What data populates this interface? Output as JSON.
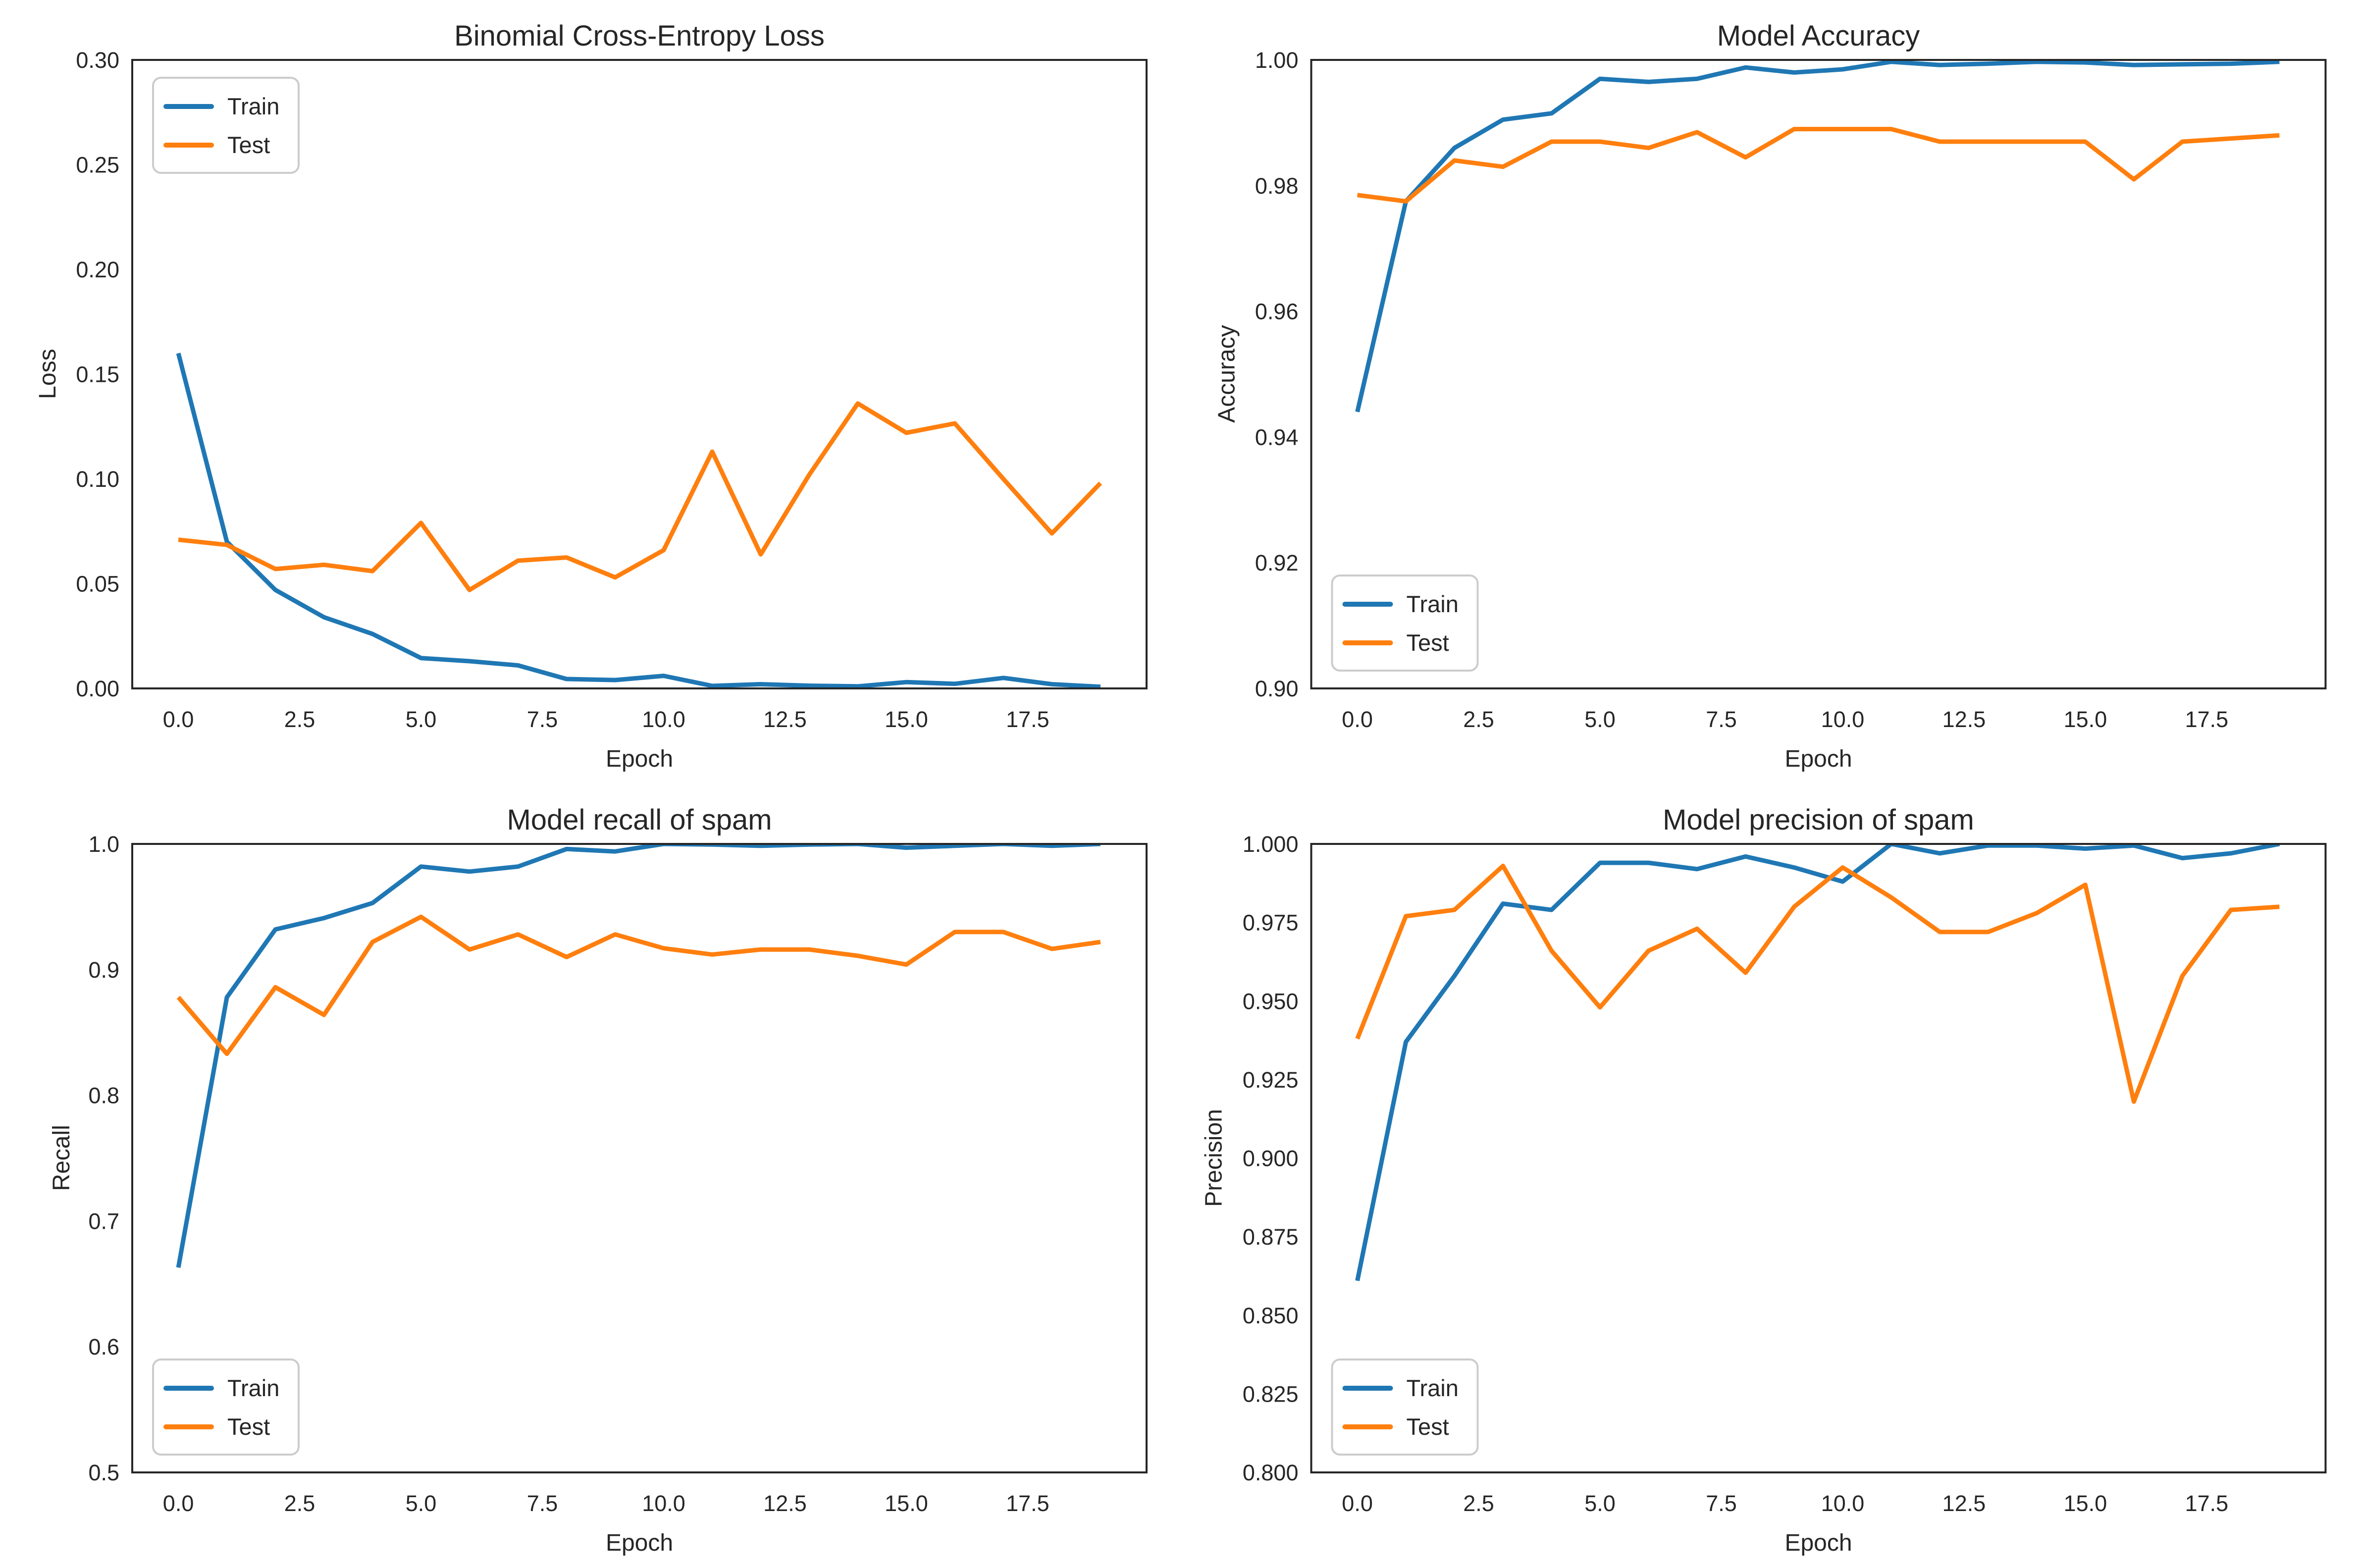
{
  "figure": {
    "background": "#ffffff",
    "spine_color": "#262626",
    "text_color": "#262626",
    "legend_border_color": "#cccccc",
    "legend_fill": "#ffffff"
  },
  "chart_data": [
    {
      "id": "loss",
      "type": "line",
      "title": "Binomial Cross-Entropy Loss",
      "xlabel": "Epoch",
      "ylabel": "Loss",
      "xlim": [
        -0.95,
        19.95
      ],
      "ylim": [
        0.0,
        0.3
      ],
      "xticks": [
        0.0,
        2.5,
        5.0,
        7.5,
        10.0,
        12.5,
        15.0,
        17.5
      ],
      "xtick_labels": [
        "0.0",
        "2.5",
        "5.0",
        "7.5",
        "10.0",
        "12.5",
        "15.0",
        "17.5"
      ],
      "yticks": [
        0.0,
        0.05,
        0.1,
        0.15,
        0.2,
        0.25,
        0.3
      ],
      "ytick_labels": [
        "0.00",
        "0.05",
        "0.10",
        "0.15",
        "0.20",
        "0.25",
        "0.30"
      ],
      "grid": false,
      "legend": {
        "position": "upper-left",
        "entries": [
          "Train",
          "Test"
        ]
      },
      "x": [
        0,
        1,
        2,
        3,
        4,
        5,
        6,
        7,
        8,
        9,
        10,
        11,
        12,
        13,
        14,
        15,
        16,
        17,
        18,
        19
      ],
      "series": [
        {
          "name": "Train",
          "color": "#1f77b4",
          "values": [
            0.16,
            0.07,
            0.047,
            0.034,
            0.026,
            0.0145,
            0.013,
            0.011,
            0.0045,
            0.004,
            0.006,
            0.0012,
            0.002,
            0.0013,
            0.001,
            0.003,
            0.0022,
            0.005,
            0.002,
            0.0008
          ]
        },
        {
          "name": "Test",
          "color": "#ff7f0e",
          "values": [
            0.071,
            0.0685,
            0.057,
            0.059,
            0.056,
            0.079,
            0.047,
            0.061,
            0.0625,
            0.053,
            0.066,
            0.113,
            0.064,
            0.102,
            0.136,
            0.122,
            0.1265,
            0.1,
            0.074,
            0.098
          ]
        }
      ]
    },
    {
      "id": "accuracy",
      "type": "line",
      "title": "Model Accuracy",
      "xlabel": "Epoch",
      "ylabel": "Accuracy",
      "xlim": [
        -0.95,
        19.95
      ],
      "ylim": [
        0.9,
        1.0
      ],
      "xticks": [
        0.0,
        2.5,
        5.0,
        7.5,
        10.0,
        12.5,
        15.0,
        17.5
      ],
      "xtick_labels": [
        "0.0",
        "2.5",
        "5.0",
        "7.5",
        "10.0",
        "12.5",
        "15.0",
        "17.5"
      ],
      "yticks": [
        0.9,
        0.92,
        0.94,
        0.96,
        0.98,
        1.0
      ],
      "ytick_labels": [
        "0.90",
        "0.92",
        "0.94",
        "0.96",
        "0.98",
        "1.00"
      ],
      "grid": false,
      "legend": {
        "position": "lower-left",
        "entries": [
          "Train",
          "Test"
        ]
      },
      "x": [
        0,
        1,
        2,
        3,
        4,
        5,
        6,
        7,
        8,
        9,
        10,
        11,
        12,
        13,
        14,
        15,
        16,
        17,
        18,
        19
      ],
      "series": [
        {
          "name": "Train",
          "color": "#1f77b4",
          "values": [
            0.944,
            0.9775,
            0.986,
            0.9905,
            0.9915,
            0.997,
            0.9965,
            0.997,
            0.9988,
            0.998,
            0.9985,
            0.9997,
            0.9992,
            0.9994,
            0.9997,
            0.9996,
            0.9992,
            0.9993,
            0.9994,
            0.9997
          ]
        },
        {
          "name": "Test",
          "color": "#ff7f0e",
          "values": [
            0.9785,
            0.9775,
            0.984,
            0.983,
            0.987,
            0.987,
            0.986,
            0.9885,
            0.9845,
            0.989,
            0.989,
            0.989,
            0.987,
            0.987,
            0.987,
            0.987,
            0.981,
            0.987,
            0.9875,
            0.988
          ]
        }
      ]
    },
    {
      "id": "recall",
      "type": "line",
      "title": "Model recall of spam",
      "xlabel": "Epoch",
      "ylabel": "Recall",
      "xlim": [
        -0.95,
        19.95
      ],
      "ylim": [
        0.5,
        1.0
      ],
      "xticks": [
        0.0,
        2.5,
        5.0,
        7.5,
        10.0,
        12.5,
        15.0,
        17.5
      ],
      "xtick_labels": [
        "0.0",
        "2.5",
        "5.0",
        "7.5",
        "10.0",
        "12.5",
        "15.0",
        "17.5"
      ],
      "yticks": [
        0.5,
        0.6,
        0.7,
        0.8,
        0.9,
        1.0
      ],
      "ytick_labels": [
        "0.5",
        "0.6",
        "0.7",
        "0.8",
        "0.9",
        "1.0"
      ],
      "grid": false,
      "legend": {
        "position": "lower-left",
        "entries": [
          "Train",
          "Test"
        ]
      },
      "x": [
        0,
        1,
        2,
        3,
        4,
        5,
        6,
        7,
        8,
        9,
        10,
        11,
        12,
        13,
        14,
        15,
        16,
        17,
        18,
        19
      ],
      "series": [
        {
          "name": "Train",
          "color": "#1f77b4",
          "values": [
            0.663,
            0.878,
            0.932,
            0.941,
            0.953,
            0.982,
            0.978,
            0.982,
            0.996,
            0.994,
            1.0,
            0.9995,
            0.9985,
            0.9995,
            1.0,
            0.997,
            0.9985,
            1.0,
            0.9985,
            1.0
          ]
        },
        {
          "name": "Test",
          "color": "#ff7f0e",
          "values": [
            0.878,
            0.833,
            0.886,
            0.864,
            0.922,
            0.942,
            0.916,
            0.928,
            0.91,
            0.928,
            0.917,
            0.912,
            0.916,
            0.916,
            0.911,
            0.904,
            0.93,
            0.93,
            0.9165,
            0.922
          ]
        }
      ]
    },
    {
      "id": "precision",
      "type": "line",
      "title": "Model precision of spam",
      "xlabel": "Epoch",
      "ylabel": "Precision",
      "xlim": [
        -0.95,
        19.95
      ],
      "ylim": [
        0.8,
        1.0
      ],
      "xticks": [
        0.0,
        2.5,
        5.0,
        7.5,
        10.0,
        12.5,
        15.0,
        17.5
      ],
      "xtick_labels": [
        "0.0",
        "2.5",
        "5.0",
        "7.5",
        "10.0",
        "12.5",
        "15.0",
        "17.5"
      ],
      "yticks": [
        0.8,
        0.825,
        0.85,
        0.875,
        0.9,
        0.925,
        0.95,
        0.975,
        1.0
      ],
      "ytick_labels": [
        "0.800",
        "0.825",
        "0.850",
        "0.875",
        "0.900",
        "0.925",
        "0.950",
        "0.975",
        "1.000"
      ],
      "grid": false,
      "legend": {
        "position": "lower-left",
        "entries": [
          "Train",
          "Test"
        ]
      },
      "x": [
        0,
        1,
        2,
        3,
        4,
        5,
        6,
        7,
        8,
        9,
        10,
        11,
        12,
        13,
        14,
        15,
        16,
        17,
        18,
        19
      ],
      "series": [
        {
          "name": "Train",
          "color": "#1f77b4",
          "values": [
            0.861,
            0.937,
            0.958,
            0.981,
            0.979,
            0.994,
            0.994,
            0.992,
            0.996,
            0.9925,
            0.988,
            1.0,
            0.997,
            0.9995,
            0.9995,
            0.9985,
            0.9995,
            0.9955,
            0.997,
            1.0
          ]
        },
        {
          "name": "Test",
          "color": "#ff7f0e",
          "values": [
            0.938,
            0.977,
            0.979,
            0.993,
            0.966,
            0.948,
            0.966,
            0.973,
            0.959,
            0.98,
            0.9925,
            0.983,
            0.972,
            0.972,
            0.978,
            0.987,
            0.918,
            0.958,
            0.979,
            0.98
          ]
        }
      ]
    }
  ]
}
